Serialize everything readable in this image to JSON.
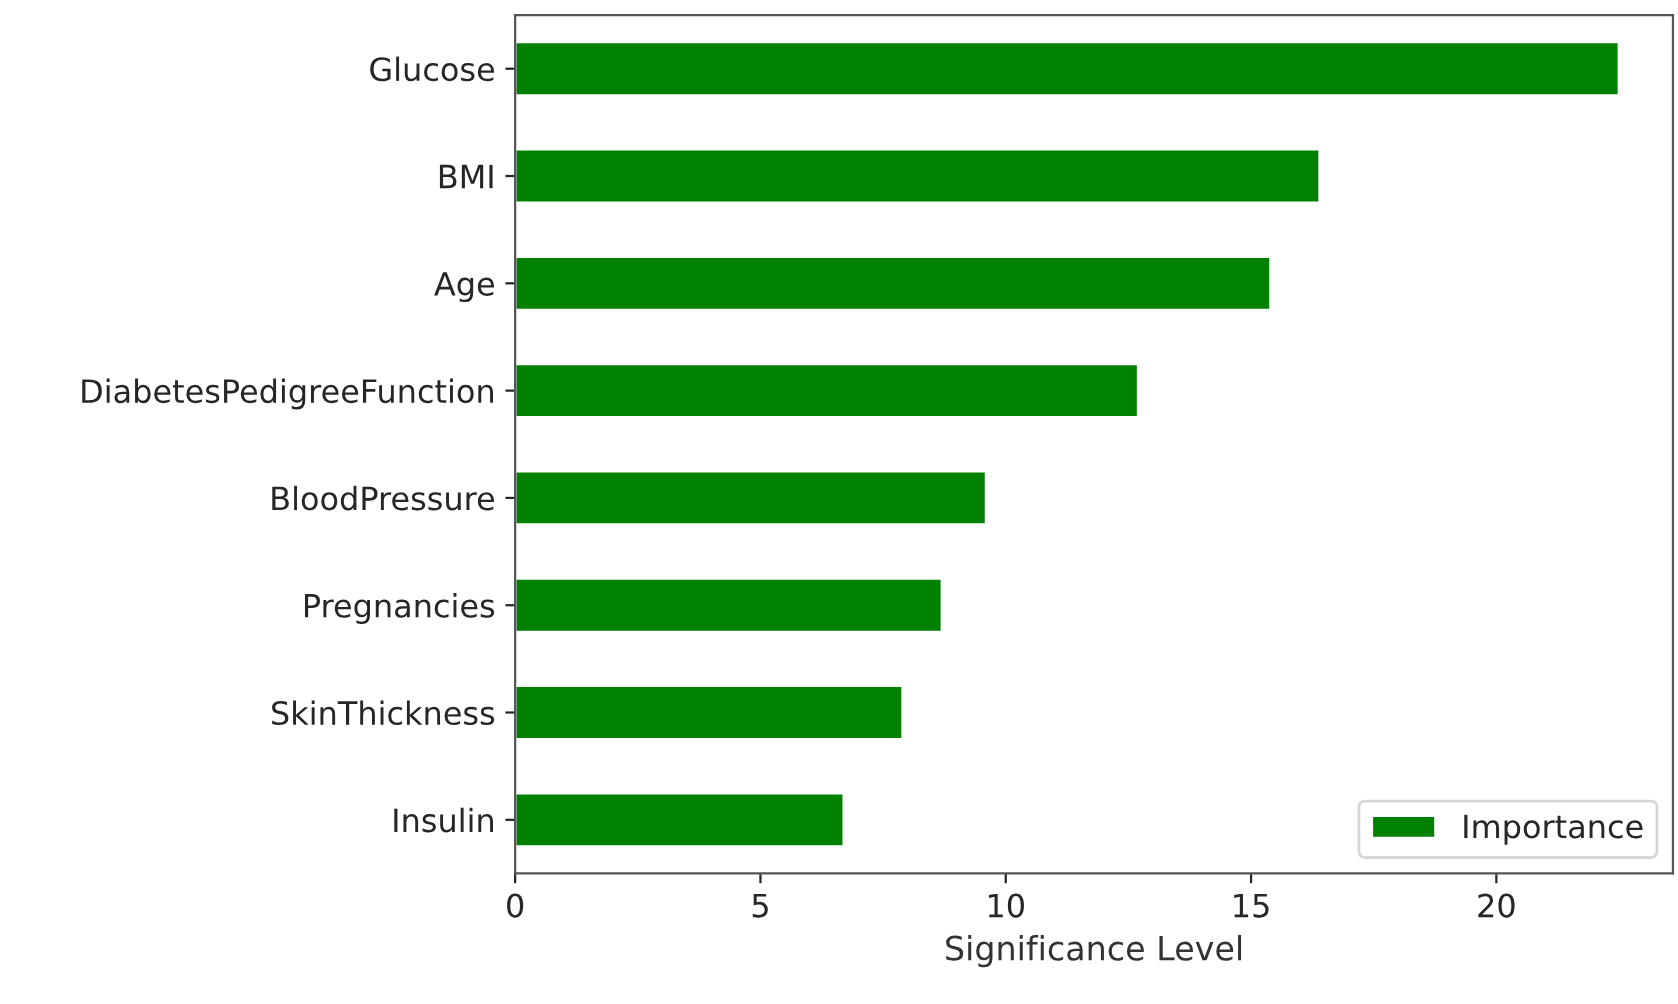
{
  "chart_data": {
    "type": "bar",
    "orientation": "horizontal",
    "xlabel": "Significance Level",
    "categories": [
      "Glucose",
      "BMI",
      "Age",
      "DiabetesPedigreeFunction",
      "BloodPressure",
      "Pregnancies",
      "SkinThickness",
      "Insulin"
    ],
    "series": [
      {
        "name": "Importance",
        "color": "#008000",
        "values": [
          22.5,
          16.4,
          15.4,
          12.7,
          9.6,
          8.7,
          7.9,
          6.7
        ]
      }
    ],
    "xlim": [
      0,
      23.6
    ],
    "xticks": [
      0,
      5,
      10,
      15,
      20
    ],
    "legend": "bottom right",
    "grid": false
  }
}
